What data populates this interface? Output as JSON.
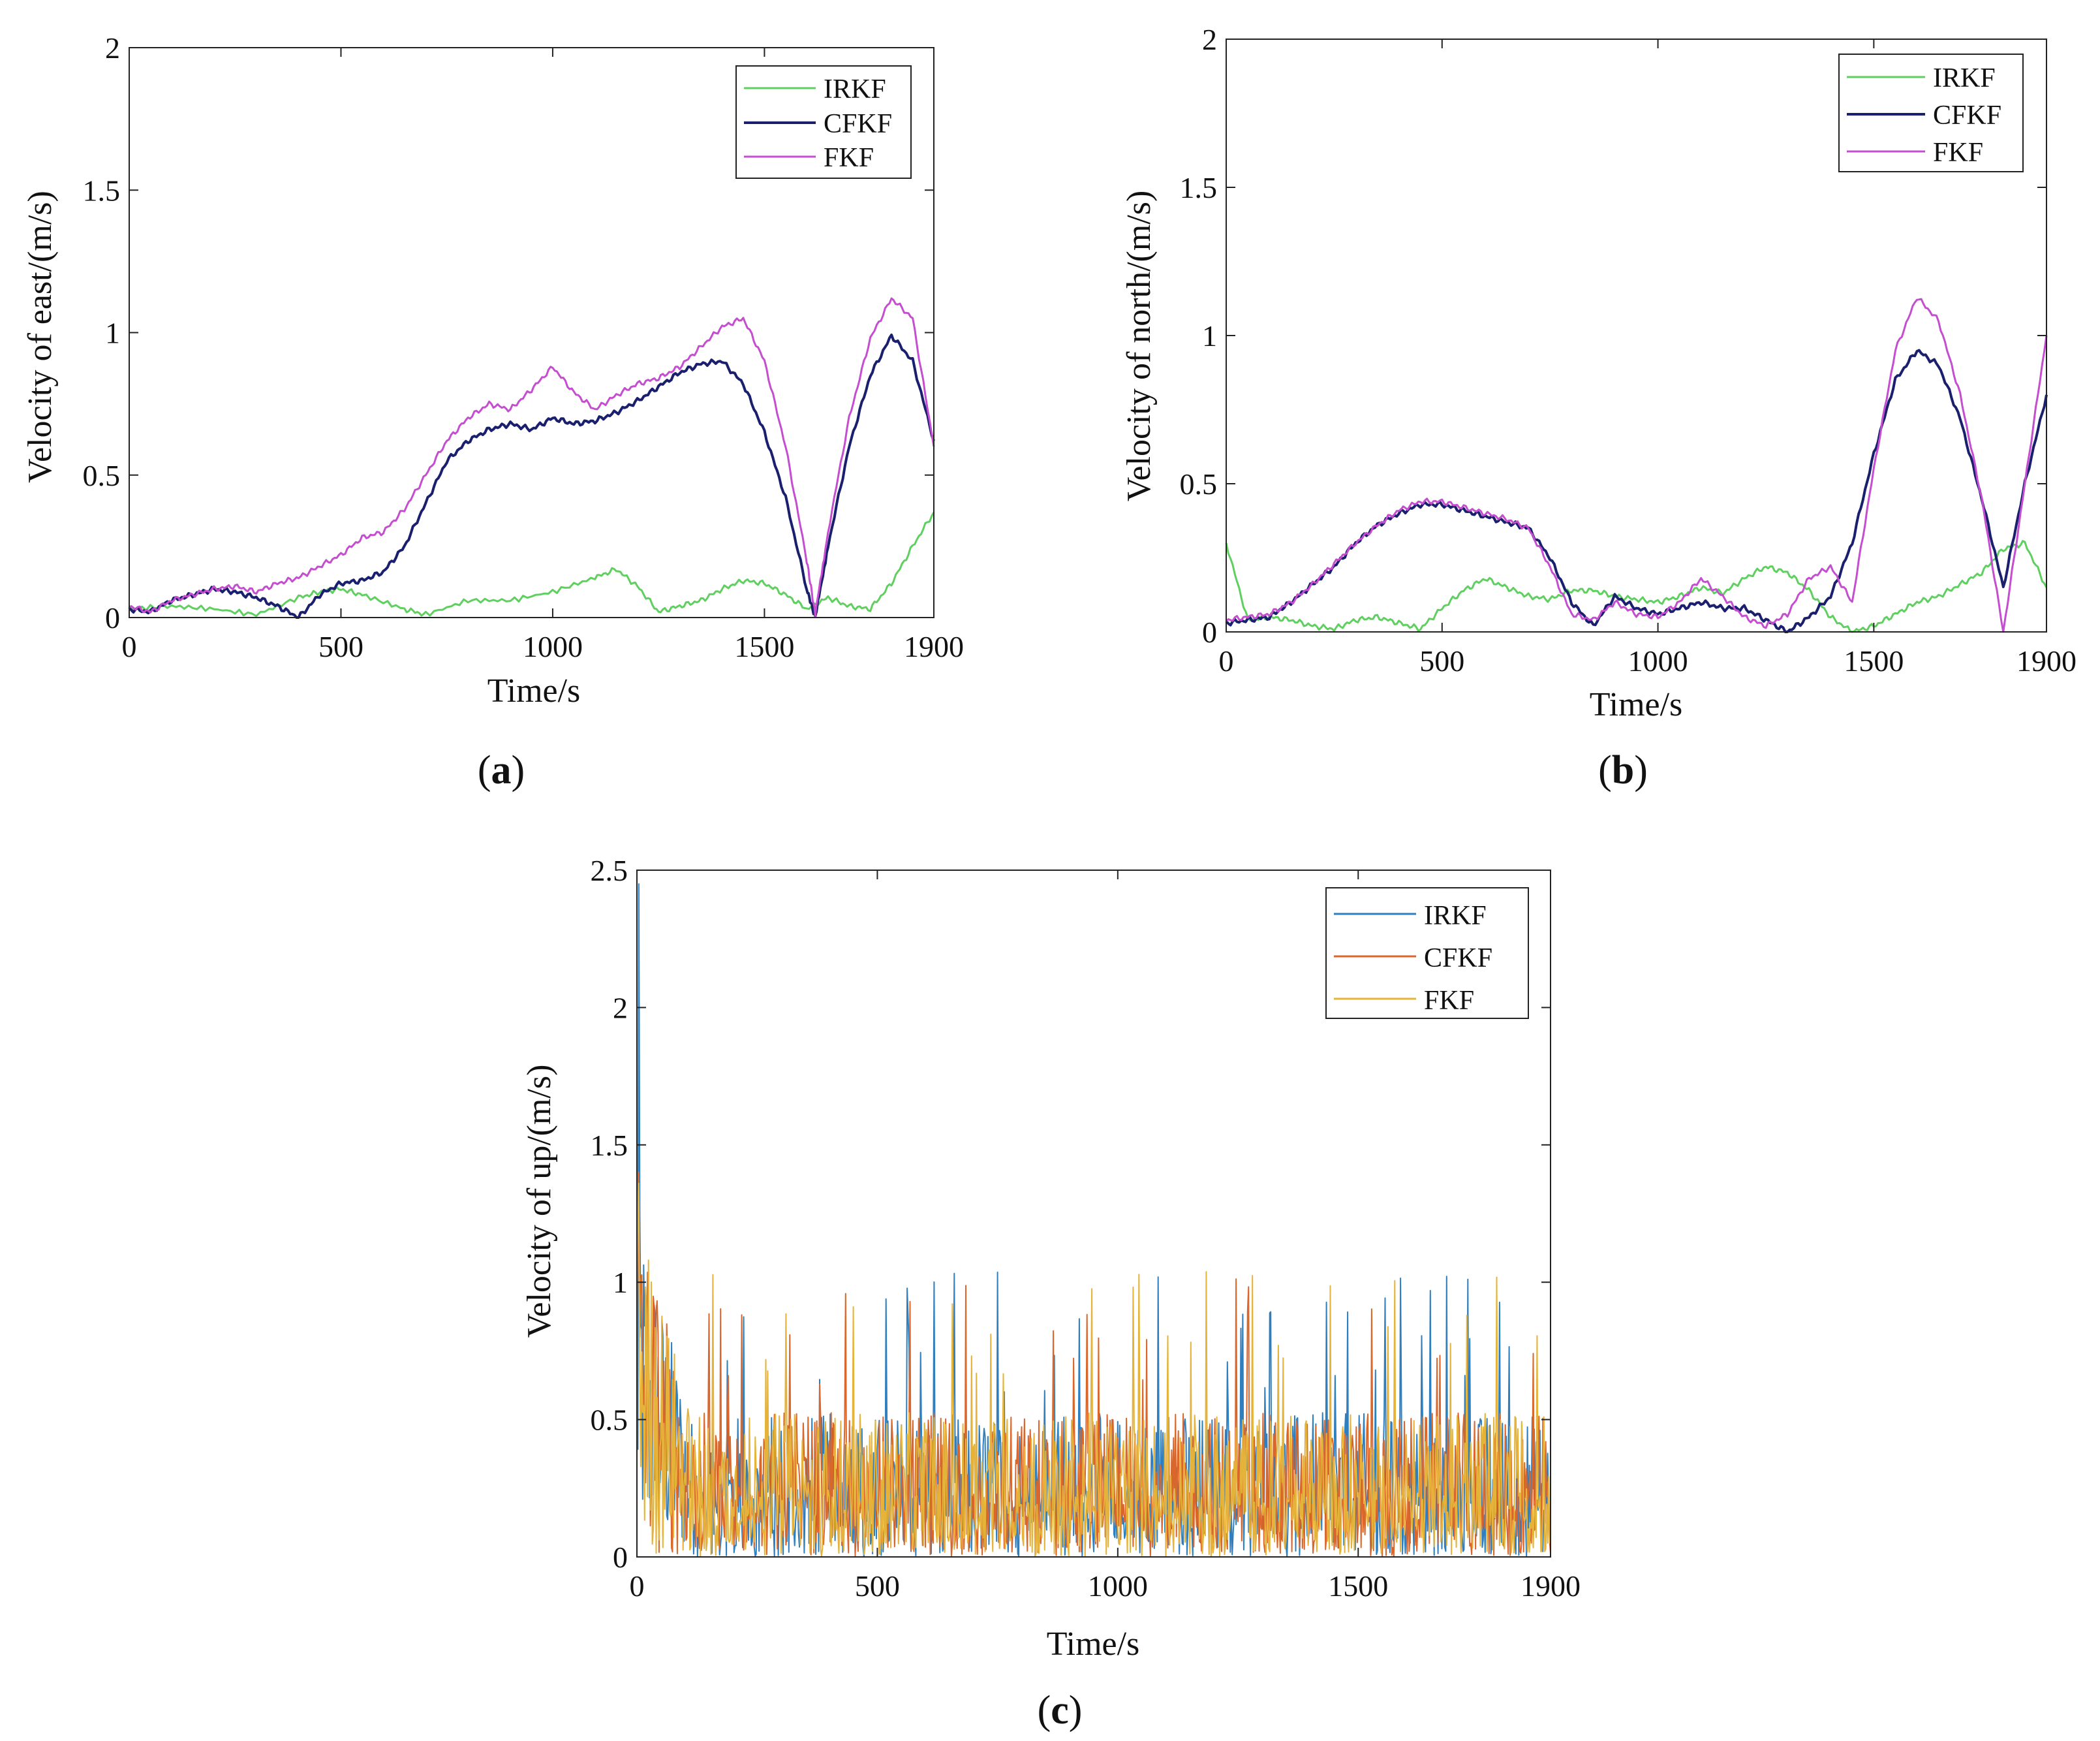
{
  "chart_data": [
    {
      "id": "a",
      "type": "line",
      "panel_label_open": "(",
      "panel_label": "a",
      "panel_label_close": ")",
      "xlabel": "Time/s",
      "ylabel": "Velocity of east/(m/s)",
      "xlim": [
        0,
        1900
      ],
      "ylim": [
        0,
        2
      ],
      "xticks": [
        0,
        500,
        1000,
        1500,
        1900
      ],
      "yticks": [
        0,
        0.5,
        1,
        1.5,
        2
      ],
      "ytick_labels": [
        "0",
        "0.5",
        "1",
        "1.5",
        "2"
      ],
      "legend_position": "top-right",
      "series": [
        {
          "name": "IRKF",
          "color": "#5fcf5f",
          "x": [
            0,
            100,
            200,
            300,
            400,
            450,
            500,
            550,
            650,
            700,
            800,
            900,
            1000,
            1100,
            1150,
            1200,
            1250,
            1300,
            1350,
            1400,
            1450,
            1500,
            1550,
            1600,
            1650,
            1700,
            1750,
            1800,
            1850,
            1900
          ],
          "y": [
            0.03,
            0.04,
            0.03,
            0.01,
            0.07,
            0.09,
            0.1,
            0.08,
            0.03,
            0.01,
            0.06,
            0.06,
            0.09,
            0.14,
            0.17,
            0.11,
            0.02,
            0.04,
            0.06,
            0.1,
            0.13,
            0.12,
            0.08,
            0.03,
            0.07,
            0.04,
            0.03,
            0.12,
            0.25,
            0.37
          ]
        },
        {
          "name": "CFKF",
          "color": "#1a1f6e",
          "x": [
            0,
            50,
            100,
            150,
            200,
            250,
            300,
            350,
            400,
            450,
            500,
            550,
            600,
            650,
            700,
            750,
            800,
            850,
            900,
            950,
            1000,
            1050,
            1100,
            1150,
            1200,
            1250,
            1300,
            1350,
            1400,
            1450,
            1500,
            1550,
            1600,
            1620,
            1650,
            1700,
            1750,
            1800,
            1850,
            1900
          ],
          "y": [
            0.03,
            0.02,
            0.06,
            0.08,
            0.1,
            0.09,
            0.07,
            0.04,
            0.0,
            0.08,
            0.12,
            0.13,
            0.16,
            0.25,
            0.4,
            0.55,
            0.62,
            0.66,
            0.68,
            0.66,
            0.7,
            0.68,
            0.69,
            0.72,
            0.76,
            0.81,
            0.86,
            0.89,
            0.9,
            0.82,
            0.65,
            0.42,
            0.1,
            0.0,
            0.25,
            0.6,
            0.85,
            0.99,
            0.9,
            0.62
          ]
        },
        {
          "name": "FKF",
          "color": "#c44dd0",
          "x": [
            0,
            50,
            100,
            150,
            200,
            250,
            300,
            350,
            400,
            450,
            500,
            550,
            600,
            650,
            700,
            750,
            800,
            850,
            900,
            950,
            1000,
            1050,
            1100,
            1150,
            1200,
            1250,
            1300,
            1350,
            1400,
            1450,
            1500,
            1550,
            1600,
            1620,
            1650,
            1700,
            1750,
            1800,
            1850,
            1900
          ],
          "y": [
            0.04,
            0.02,
            0.06,
            0.08,
            0.1,
            0.11,
            0.09,
            0.12,
            0.14,
            0.18,
            0.22,
            0.28,
            0.3,
            0.38,
            0.5,
            0.62,
            0.7,
            0.75,
            0.73,
            0.8,
            0.88,
            0.79,
            0.73,
            0.78,
            0.82,
            0.84,
            0.88,
            0.95,
            1.02,
            1.05,
            0.9,
            0.6,
            0.2,
            0.01,
            0.3,
            0.7,
            0.98,
            1.12,
            1.05,
            0.6
          ]
        }
      ]
    },
    {
      "id": "b",
      "type": "line",
      "panel_label_open": "(",
      "panel_label": "b",
      "panel_label_close": ")",
      "xlabel": "Time/s",
      "ylabel": "Velocity of north/(m/s)",
      "xlim": [
        0,
        1900
      ],
      "ylim": [
        0,
        2
      ],
      "xticks": [
        0,
        500,
        1000,
        1500,
        1900
      ],
      "yticks": [
        0,
        0.5,
        1,
        1.5,
        2
      ],
      "ytick_labels": [
        "0",
        "0.5",
        "1",
        "1.5",
        "2"
      ],
      "legend_position": "top-right",
      "series": [
        {
          "name": "IRKF",
          "color": "#5fcf5f",
          "x": [
            0,
            50,
            100,
            150,
            200,
            250,
            300,
            350,
            400,
            450,
            500,
            550,
            600,
            650,
            700,
            750,
            800,
            850,
            900,
            950,
            1000,
            1050,
            1100,
            1150,
            1200,
            1250,
            1300,
            1350,
            1400,
            1450,
            1500,
            1550,
            1600,
            1650,
            1700,
            1750,
            1800,
            1850,
            1900
          ],
          "y": [
            0.3,
            0.04,
            0.05,
            0.04,
            0.02,
            0.01,
            0.04,
            0.05,
            0.03,
            0.01,
            0.08,
            0.14,
            0.18,
            0.15,
            0.12,
            0.11,
            0.14,
            0.14,
            0.12,
            0.11,
            0.1,
            0.12,
            0.15,
            0.13,
            0.18,
            0.22,
            0.2,
            0.14,
            0.05,
            0.0,
            0.02,
            0.06,
            0.1,
            0.12,
            0.16,
            0.2,
            0.28,
            0.3,
            0.15
          ]
        },
        {
          "name": "CFKF",
          "color": "#1a1f6e",
          "x": [
            0,
            50,
            100,
            150,
            200,
            250,
            300,
            350,
            400,
            450,
            500,
            550,
            600,
            650,
            700,
            750,
            800,
            850,
            900,
            950,
            1000,
            1050,
            1100,
            1150,
            1200,
            1250,
            1300,
            1350,
            1400,
            1450,
            1500,
            1550,
            1600,
            1650,
            1700,
            1750,
            1800,
            1850,
            1900
          ],
          "y": [
            0.03,
            0.04,
            0.05,
            0.1,
            0.16,
            0.22,
            0.3,
            0.36,
            0.4,
            0.43,
            0.43,
            0.41,
            0.39,
            0.37,
            0.35,
            0.25,
            0.1,
            0.02,
            0.12,
            0.08,
            0.06,
            0.08,
            0.1,
            0.08,
            0.08,
            0.04,
            0.0,
            0.05,
            0.12,
            0.3,
            0.6,
            0.85,
            0.95,
            0.9,
            0.72,
            0.45,
            0.15,
            0.5,
            0.8
          ]
        },
        {
          "name": "FKF",
          "color": "#c44dd0",
          "x": [
            0,
            50,
            100,
            150,
            200,
            250,
            300,
            350,
            400,
            450,
            500,
            550,
            600,
            650,
            700,
            750,
            800,
            850,
            900,
            950,
            1000,
            1050,
            1100,
            1150,
            1200,
            1250,
            1300,
            1350,
            1400,
            1450,
            1500,
            1550,
            1600,
            1650,
            1700,
            1750,
            1800,
            1850,
            1900
          ],
          "y": [
            0.04,
            0.05,
            0.06,
            0.1,
            0.16,
            0.23,
            0.3,
            0.36,
            0.41,
            0.44,
            0.44,
            0.42,
            0.4,
            0.38,
            0.35,
            0.22,
            0.06,
            0.04,
            0.1,
            0.06,
            0.05,
            0.1,
            0.18,
            0.12,
            0.05,
            0.02,
            0.06,
            0.18,
            0.22,
            0.1,
            0.55,
            0.95,
            1.13,
            1.05,
            0.8,
            0.45,
            0.0,
            0.5,
            1.0
          ]
        }
      ]
    },
    {
      "id": "c",
      "type": "line",
      "panel_label_open": "(",
      "panel_label": "c",
      "panel_label_close": ")",
      "xlabel": "Time/s",
      "ylabel": "Velocity of up/(m/s)",
      "xlim": [
        0,
        1900
      ],
      "ylim": [
        0,
        2.5
      ],
      "xticks": [
        0,
        500,
        1000,
        1500,
        1900
      ],
      "yticks": [
        0,
        0.5,
        1,
        1.5,
        2,
        2.5
      ],
      "ytick_labels": [
        "0",
        "0.5",
        "1",
        "1.5",
        "2",
        "2.5"
      ],
      "legend_position": "top-right",
      "note": "noisy signal, approx. 0–0.8 m/s with initial spike to 2.45 m/s for IRKF",
      "series": [
        {
          "name": "IRKF",
          "color": "#2f7fbf",
          "peak": 2.45,
          "typical_max": 0.8,
          "mean": 0.22
        },
        {
          "name": "CFKF",
          "color": "#d9662b",
          "peak": 1.4,
          "typical_max": 0.75,
          "mean": 0.25
        },
        {
          "name": "FKF",
          "color": "#e5b33a",
          "peak": 1.36,
          "typical_max": 0.8,
          "mean": 0.28
        }
      ]
    }
  ]
}
